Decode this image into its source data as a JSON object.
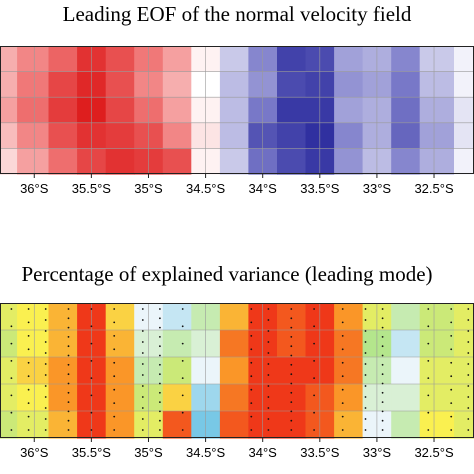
{
  "panels": [
    {
      "title": "Leading EOF of the normal velocity field",
      "chart_data": {
        "type": "heatmap",
        "title": "Leading EOF of the normal velocity field",
        "xlabel": "",
        "ylabel": "",
        "x_ticks": [
          "36°S",
          "35.5°S",
          "35°S",
          "34.5°S",
          "34°S",
          "33.5°S",
          "33°S",
          "32.5°S"
        ],
        "x_tick_values": [
          -36,
          -35.5,
          -35,
          -34.5,
          -34,
          -33.5,
          -33,
          -32.5
        ],
        "xlim": [
          -36.3,
          -32.15
        ],
        "grid": true,
        "colormap": "blue-white-red",
        "x": [
          -36.3,
          -36.0,
          -35.75,
          -35.5,
          -35.25,
          -35.0,
          -34.75,
          -34.5,
          -34.25,
          -34.0,
          -33.75,
          -33.5,
          -33.25,
          -33.0,
          -32.75,
          -32.5,
          -32.15
        ],
        "rows": 5,
        "values": [
          [
            0.3,
            0.45,
            0.6,
            0.85,
            0.7,
            0.5,
            0.35,
            0.05,
            -0.2,
            -0.45,
            -0.8,
            -0.75,
            -0.35,
            -0.3,
            -0.45,
            -0.2,
            -0.05
          ],
          [
            0.3,
            0.5,
            0.75,
            0.9,
            0.7,
            0.45,
            0.3,
            0.0,
            -0.25,
            -0.4,
            -0.75,
            -0.8,
            -0.4,
            -0.35,
            -0.5,
            -0.25,
            -0.05
          ],
          [
            0.35,
            0.55,
            0.8,
            0.95,
            0.75,
            0.55,
            0.35,
            0.05,
            -0.25,
            -0.5,
            -0.85,
            -0.85,
            -0.35,
            -0.3,
            -0.55,
            -0.3,
            -0.1
          ],
          [
            0.25,
            0.45,
            0.7,
            0.85,
            0.8,
            0.7,
            0.45,
            0.1,
            -0.25,
            -0.7,
            -0.8,
            -0.9,
            -0.45,
            -0.3,
            -0.6,
            -0.35,
            -0.1
          ],
          [
            0.15,
            0.35,
            0.55,
            0.75,
            0.85,
            0.8,
            0.7,
            0.05,
            -0.2,
            -0.55,
            -0.75,
            -0.85,
            -0.4,
            -0.25,
            -0.45,
            -0.3,
            -0.05
          ]
        ]
      }
    },
    {
      "title": "Percentage of explained variance (leading mode)",
      "chart_data": {
        "type": "heatmap",
        "title": "Percentage of explained variance (leading mode)",
        "xlabel": "",
        "ylabel": "",
        "x_ticks": [
          "36°S",
          "35.5°S",
          "35°S",
          "34.5°S",
          "34°S",
          "33.5°S",
          "33°S",
          "32.5°S"
        ],
        "x_tick_values": [
          -36,
          -35.5,
          -35,
          -34.5,
          -34,
          -33.5,
          -33,
          -32.5
        ],
        "xlim": [
          -36.3,
          -32.15
        ],
        "grid": true,
        "colormap": "jet",
        "x": [
          -36.3,
          -36.0,
          -35.75,
          -35.5,
          -35.25,
          -35.0,
          -34.75,
          -34.5,
          -34.25,
          -34.0,
          -33.75,
          -33.5,
          -33.25,
          -33.0,
          -32.75,
          -32.5,
          -32.15
        ],
        "rows": 5,
        "values": [
          [
            0.6,
            0.65,
            0.75,
            0.95,
            0.7,
            0.35,
            0.3,
            0.45,
            0.75,
            0.95,
            0.9,
            0.95,
            0.8,
            0.6,
            0.45,
            0.55,
            0.6
          ],
          [
            0.55,
            0.65,
            0.75,
            0.95,
            0.75,
            0.4,
            0.45,
            0.4,
            0.85,
            0.95,
            0.9,
            0.95,
            0.85,
            0.5,
            0.3,
            0.55,
            0.6
          ],
          [
            0.6,
            0.7,
            0.8,
            0.95,
            0.8,
            0.45,
            0.55,
            0.35,
            0.8,
            0.95,
            0.95,
            0.95,
            0.85,
            0.45,
            0.35,
            0.6,
            0.6
          ],
          [
            0.6,
            0.65,
            0.8,
            0.95,
            0.8,
            0.55,
            0.7,
            0.25,
            0.85,
            0.95,
            0.95,
            0.9,
            0.8,
            0.4,
            0.4,
            0.6,
            0.6
          ],
          [
            0.55,
            0.6,
            0.75,
            0.95,
            0.8,
            0.6,
            0.9,
            0.2,
            0.9,
            0.95,
            0.95,
            0.9,
            0.75,
            0.35,
            0.45,
            0.65,
            0.6
          ]
        ]
      }
    }
  ]
}
